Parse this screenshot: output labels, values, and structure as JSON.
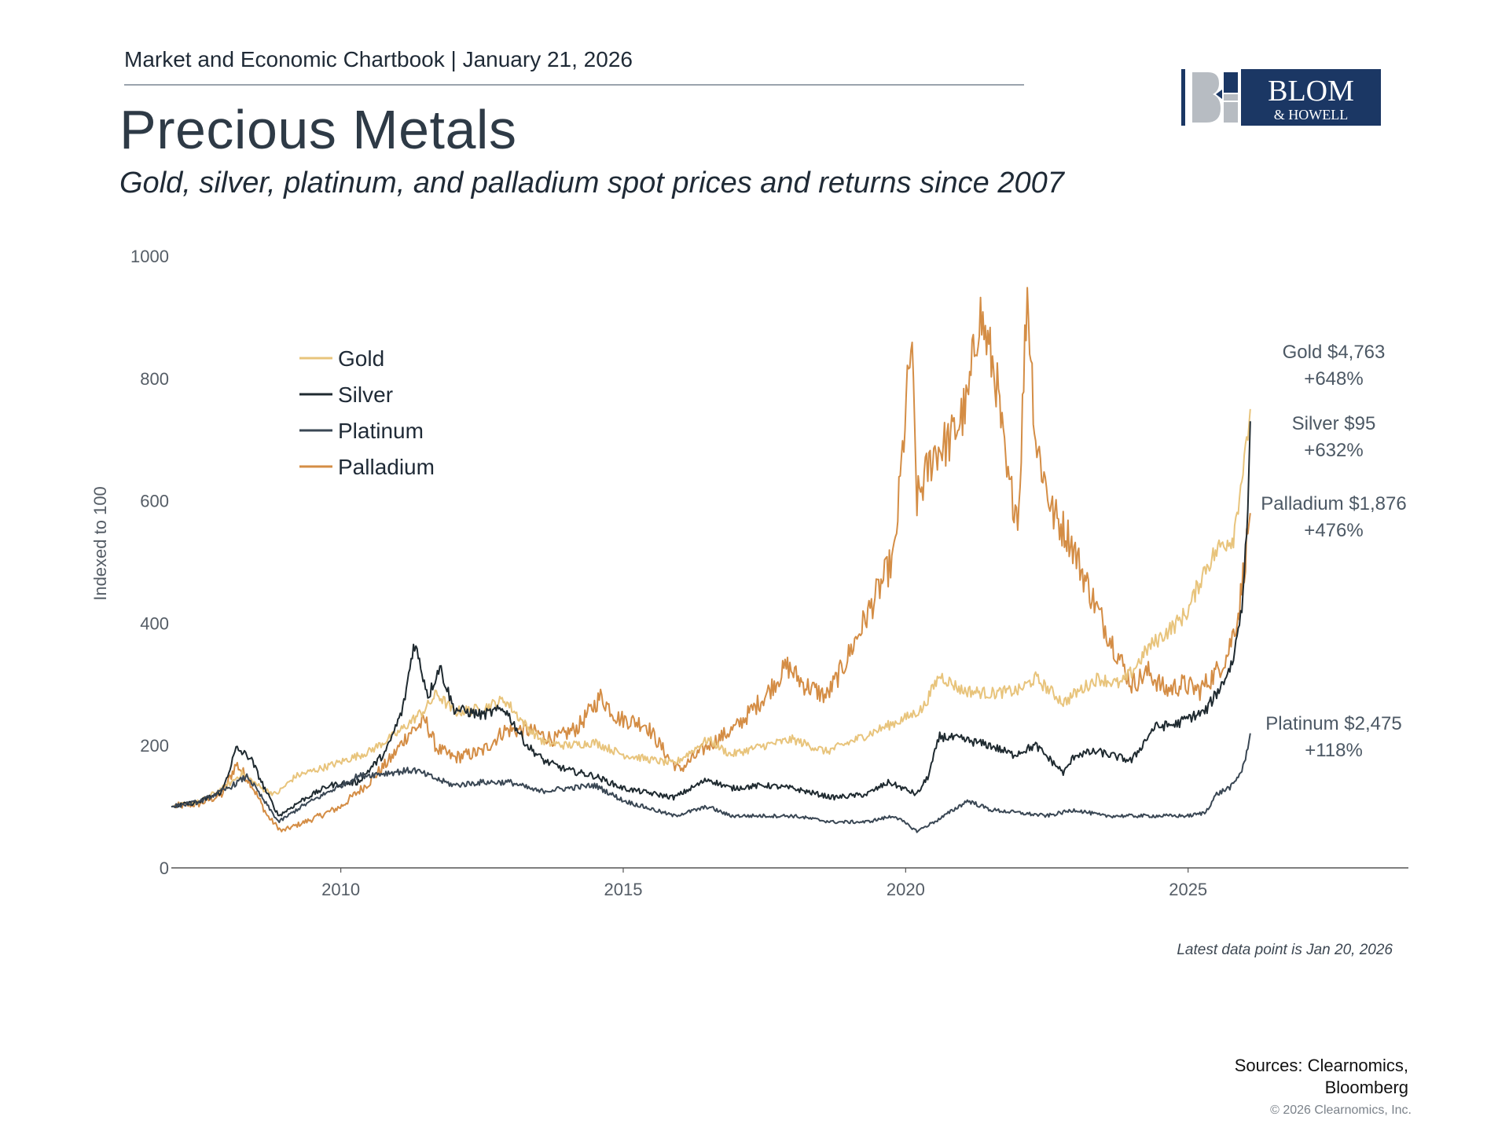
{
  "header": {
    "line": "Market and Economic Chartbook | January 21, 2026",
    "title": "Precious Metals",
    "subtitle": "Gold, silver, platinum, and palladium spot prices and returns since 2007"
  },
  "logo": {
    "monogram": "B",
    "name_line1": "BLOM",
    "name_line2": "& HOWELL",
    "colors": {
      "navy": "#1b3764",
      "gray": "#b7bcc2"
    }
  },
  "chart_data": {
    "type": "line",
    "ylabel": "Indexed to 100",
    "xlabel": "",
    "ylim": [
      0,
      1000
    ],
    "xlim": [
      2007.0,
      2028.9
    ],
    "yticks": [
      "0",
      "200",
      "400",
      "600",
      "800",
      "1000"
    ],
    "xticks": [
      "2010",
      "2015",
      "2020",
      "2025"
    ],
    "grid": false,
    "legend_position": "top-left",
    "series": [
      {
        "name": "Gold",
        "color": "#e8c47c",
        "points": [
          [
            2007.0,
            100
          ],
          [
            2007.5,
            108
          ],
          [
            2008.0,
            135
          ],
          [
            2008.25,
            155
          ],
          [
            2008.6,
            130
          ],
          [
            2008.85,
            120
          ],
          [
            2009.2,
            150
          ],
          [
            2009.9,
            170
          ],
          [
            2010.5,
            190
          ],
          [
            2011.0,
            220
          ],
          [
            2011.5,
            260
          ],
          [
            2011.7,
            285
          ],
          [
            2012.0,
            255
          ],
          [
            2012.5,
            260
          ],
          [
            2012.9,
            275
          ],
          [
            2013.3,
            230
          ],
          [
            2013.6,
            205
          ],
          [
            2014.0,
            200
          ],
          [
            2014.5,
            205
          ],
          [
            2015.0,
            185
          ],
          [
            2015.9,
            170
          ],
          [
            2016.5,
            210
          ],
          [
            2016.9,
            185
          ],
          [
            2017.5,
            200
          ],
          [
            2018.0,
            210
          ],
          [
            2018.6,
            190
          ],
          [
            2019.0,
            205
          ],
          [
            2019.5,
            225
          ],
          [
            2020.0,
            245
          ],
          [
            2020.3,
            260
          ],
          [
            2020.6,
            315
          ],
          [
            2021.0,
            290
          ],
          [
            2021.5,
            285
          ],
          [
            2022.0,
            290
          ],
          [
            2022.3,
            310
          ],
          [
            2022.8,
            270
          ],
          [
            2023.0,
            285
          ],
          [
            2023.4,
            310
          ],
          [
            2023.8,
            300
          ],
          [
            2024.0,
            320
          ],
          [
            2024.3,
            360
          ],
          [
            2024.8,
            400
          ],
          [
            2025.0,
            420
          ],
          [
            2025.3,
            490
          ],
          [
            2025.6,
            530
          ],
          [
            2025.8,
            540
          ],
          [
            2025.95,
            640
          ],
          [
            2026.05,
            690
          ],
          [
            2026.1,
            750
          ]
        ],
        "label": "Gold $4,763",
        "change": "+648%"
      },
      {
        "name": "Silver",
        "color": "#1f2a30",
        "points": [
          [
            2007.0,
            100
          ],
          [
            2007.5,
            108
          ],
          [
            2007.9,
            125
          ],
          [
            2008.15,
            195
          ],
          [
            2008.4,
            180
          ],
          [
            2008.65,
            130
          ],
          [
            2008.9,
            85
          ],
          [
            2009.3,
            110
          ],
          [
            2009.8,
            135
          ],
          [
            2010.3,
            140
          ],
          [
            2010.8,
            190
          ],
          [
            2011.1,
            260
          ],
          [
            2011.3,
            370
          ],
          [
            2011.55,
            280
          ],
          [
            2011.75,
            330
          ],
          [
            2012.0,
            260
          ],
          [
            2012.5,
            250
          ],
          [
            2012.9,
            260
          ],
          [
            2013.3,
            200
          ],
          [
            2013.6,
            175
          ],
          [
            2014.0,
            160
          ],
          [
            2014.5,
            150
          ],
          [
            2015.0,
            130
          ],
          [
            2015.9,
            115
          ],
          [
            2016.5,
            145
          ],
          [
            2016.9,
            130
          ],
          [
            2017.5,
            135
          ],
          [
            2018.0,
            130
          ],
          [
            2018.7,
            115
          ],
          [
            2019.3,
            120
          ],
          [
            2019.7,
            140
          ],
          [
            2020.2,
            120
          ],
          [
            2020.4,
            150
          ],
          [
            2020.6,
            215
          ],
          [
            2021.0,
            210
          ],
          [
            2021.5,
            200
          ],
          [
            2021.9,
            185
          ],
          [
            2022.3,
            200
          ],
          [
            2022.8,
            155
          ],
          [
            2023.0,
            185
          ],
          [
            2023.4,
            190
          ],
          [
            2023.8,
            180
          ],
          [
            2024.0,
            175
          ],
          [
            2024.4,
            230
          ],
          [
            2024.8,
            235
          ],
          [
            2025.0,
            245
          ],
          [
            2025.3,
            255
          ],
          [
            2025.6,
            300
          ],
          [
            2025.8,
            340
          ],
          [
            2025.95,
            430
          ],
          [
            2026.05,
            560
          ],
          [
            2026.1,
            730
          ]
        ],
        "label": "Silver $95",
        "change": "+632%"
      },
      {
        "name": "Platinum",
        "color": "#3a4754",
        "points": [
          [
            2007.0,
            100
          ],
          [
            2007.5,
            108
          ],
          [
            2008.0,
            130
          ],
          [
            2008.35,
            150
          ],
          [
            2008.6,
            115
          ],
          [
            2008.9,
            75
          ],
          [
            2009.3,
            100
          ],
          [
            2009.8,
            125
          ],
          [
            2010.3,
            150
          ],
          [
            2010.8,
            155
          ],
          [
            2011.3,
            160
          ],
          [
            2011.7,
            145
          ],
          [
            2012.0,
            135
          ],
          [
            2012.5,
            140
          ],
          [
            2013.0,
            140
          ],
          [
            2013.5,
            125
          ],
          [
            2014.0,
            130
          ],
          [
            2014.5,
            135
          ],
          [
            2015.0,
            110
          ],
          [
            2015.9,
            85
          ],
          [
            2016.5,
            100
          ],
          [
            2016.9,
            85
          ],
          [
            2017.5,
            85
          ],
          [
            2018.0,
            85
          ],
          [
            2018.7,
            75
          ],
          [
            2019.3,
            75
          ],
          [
            2019.8,
            85
          ],
          [
            2020.2,
            60
          ],
          [
            2020.6,
            80
          ],
          [
            2021.1,
            110
          ],
          [
            2021.5,
            95
          ],
          [
            2022.0,
            90
          ],
          [
            2022.5,
            85
          ],
          [
            2023.0,
            95
          ],
          [
            2023.5,
            85
          ],
          [
            2024.0,
            85
          ],
          [
            2024.5,
            85
          ],
          [
            2025.0,
            85
          ],
          [
            2025.3,
            90
          ],
          [
            2025.5,
            120
          ],
          [
            2025.8,
            135
          ],
          [
            2025.95,
            160
          ],
          [
            2026.05,
            190
          ],
          [
            2026.1,
            220
          ]
        ],
        "label": "Platinum $2,475",
        "change": "+118%"
      },
      {
        "name": "Palladium",
        "color": "#d48d45",
        "points": [
          [
            2007.0,
            100
          ],
          [
            2007.5,
            105
          ],
          [
            2007.9,
            120
          ],
          [
            2008.15,
            170
          ],
          [
            2008.4,
            140
          ],
          [
            2008.7,
            85
          ],
          [
            2008.95,
            60
          ],
          [
            2009.5,
            80
          ],
          [
            2010.0,
            100
          ],
          [
            2010.5,
            140
          ],
          [
            2010.9,
            180
          ],
          [
            2011.2,
            220
          ],
          [
            2011.5,
            240
          ],
          [
            2011.7,
            195
          ],
          [
            2012.0,
            180
          ],
          [
            2012.5,
            190
          ],
          [
            2012.9,
            225
          ],
          [
            2013.3,
            225
          ],
          [
            2013.8,
            210
          ],
          [
            2014.2,
            230
          ],
          [
            2014.6,
            280
          ],
          [
            2014.9,
            245
          ],
          [
            2015.4,
            235
          ],
          [
            2015.8,
            180
          ],
          [
            2016.0,
            160
          ],
          [
            2016.5,
            200
          ],
          [
            2017.0,
            230
          ],
          [
            2017.5,
            280
          ],
          [
            2017.9,
            330
          ],
          [
            2018.2,
            300
          ],
          [
            2018.6,
            280
          ],
          [
            2018.9,
            330
          ],
          [
            2019.4,
            430
          ],
          [
            2019.8,
            510
          ],
          [
            2020.1,
            860
          ],
          [
            2020.2,
            600
          ],
          [
            2020.5,
            680
          ],
          [
            2020.8,
            700
          ],
          [
            2021.1,
            760
          ],
          [
            2021.3,
            910
          ],
          [
            2021.6,
            800
          ],
          [
            2021.8,
            630
          ],
          [
            2022.0,
            580
          ],
          [
            2022.15,
            950
          ],
          [
            2022.3,
            700
          ],
          [
            2022.6,
            580
          ],
          [
            2022.9,
            540
          ],
          [
            2023.1,
            490
          ],
          [
            2023.4,
            420
          ],
          [
            2023.7,
            360
          ],
          [
            2024.0,
            300
          ],
          [
            2024.3,
            320
          ],
          [
            2024.6,
            290
          ],
          [
            2024.9,
            300
          ],
          [
            2025.2,
            290
          ],
          [
            2025.5,
            320
          ],
          [
            2025.7,
            350
          ],
          [
            2025.9,
            420
          ],
          [
            2026.0,
            500
          ],
          [
            2026.05,
            540
          ],
          [
            2026.1,
            580
          ]
        ],
        "label": "Palladium $1,876",
        "change": "+476%"
      }
    ],
    "note": "Latest data point is Jan 20, 2026"
  },
  "footer": {
    "sources_line1": "Sources: Clearnomics,",
    "sources_line2": "Bloomberg",
    "copyright": "© 2026 Clearnomics, Inc."
  }
}
